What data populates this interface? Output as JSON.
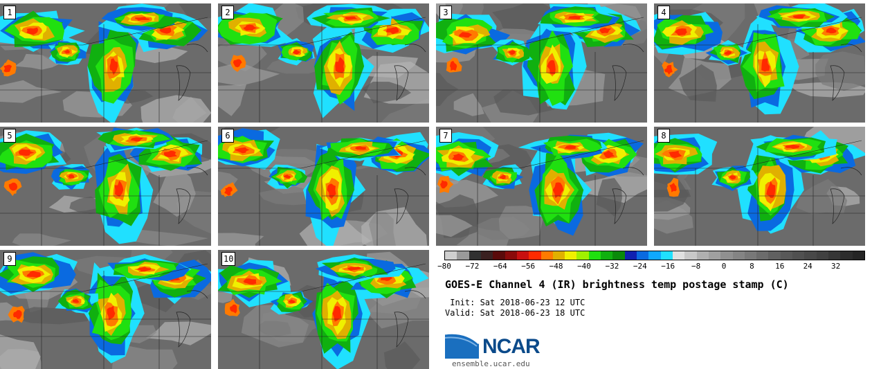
{
  "panels": [
    {
      "label": "1"
    },
    {
      "label": "2"
    },
    {
      "label": "3"
    },
    {
      "label": "4"
    },
    {
      "label": "5"
    },
    {
      "label": "6"
    },
    {
      "label": "7"
    },
    {
      "label": "8"
    },
    {
      "label": "9"
    },
    {
      "label": "10"
    }
  ],
  "colorbar": {
    "colors": [
      "#cfcfcf",
      "#9a9a9a",
      "#303030",
      "#3a2020",
      "#5a0a0a",
      "#8a0a0a",
      "#c81010",
      "#ff2a00",
      "#ff7a00",
      "#e0b000",
      "#f0f000",
      "#a0f000",
      "#20e010",
      "#10b010",
      "#0a8a0a",
      "#1020b0",
      "#0a6ae0",
      "#10a8ff",
      "#20e0ff",
      "#e0e0e0",
      "#c8c8c8",
      "#b0b0b0",
      "#a0a0a0",
      "#909090",
      "#848484",
      "#787878",
      "#6c6c6c",
      "#606060",
      "#585858",
      "#505050",
      "#484848",
      "#404040",
      "#363636",
      "#2c2c2c",
      "#242424"
    ],
    "min": -80,
    "max": 40,
    "ticks": [
      "−80",
      "−72",
      "−64",
      "−56",
      "−48",
      "−40",
      "−32",
      "−24",
      "−16",
      "−8",
      "0",
      "8",
      "16",
      "24",
      "32"
    ],
    "tick_values": [
      -80,
      -72,
      -64,
      -56,
      -48,
      -40,
      -32,
      -24,
      -16,
      -8,
      0,
      8,
      16,
      24,
      32
    ]
  },
  "title": "GOES-E Channel 4 (IR) brightness temp postage stamp (C)",
  "init": " Init: Sat 2018-06-23 12 UTC",
  "valid": "Valid: Sat 2018-06-23 18 UTC",
  "logo": {
    "name": "ncar-logo",
    "text": "NCAR"
  },
  "site": "ensemble.ucar.edu"
}
